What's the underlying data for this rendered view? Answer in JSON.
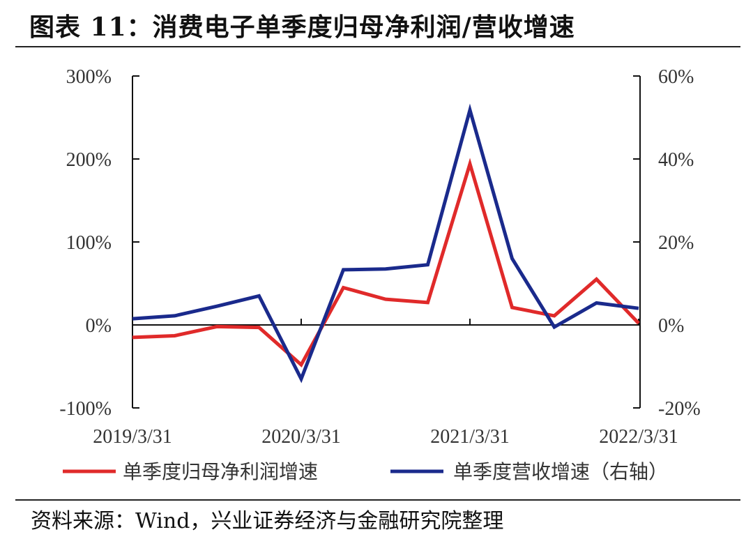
{
  "title": "图表 11：消费电子单季度归母净利润/营收增速",
  "source": "资料来源：Wind，兴业证券经济与金融研究院整理",
  "colors": {
    "profit": "#e02a2a",
    "revenue": "#1a2a8c",
    "axis": "#111111"
  },
  "chart_data": {
    "type": "line",
    "title": "消费电子单季度归母净利润/营收增速",
    "x": [
      "2019/3/31",
      "2019/6/30",
      "2019/9/30",
      "2019/12/31",
      "2020/3/31",
      "2020/6/30",
      "2020/9/30",
      "2020/12/31",
      "2021/3/31",
      "2021/6/30",
      "2021/9/30",
      "2021/12/31",
      "2022/3/31"
    ],
    "x_tick_labels": [
      "2019/3/31",
      "2020/3/31",
      "2021/3/31",
      "2022/3/31"
    ],
    "y_left": {
      "range": [
        -100,
        300
      ],
      "ticks": [
        -100,
        0,
        100,
        200,
        300
      ],
      "tick_labels": [
        "-100%",
        "0%",
        "100%",
        "200%",
        "300%"
      ]
    },
    "y_right": {
      "range": [
        -20,
        60
      ],
      "ticks": [
        -20,
        0,
        20,
        40,
        60
      ],
      "tick_labels": [
        "-20%",
        "0%",
        "20%",
        "40%",
        "60%"
      ]
    },
    "series": [
      {
        "name": "单季度归母净利润增速",
        "axis": "left",
        "values": [
          -15,
          -13,
          -2,
          -3,
          -48,
          45,
          31,
          27,
          194,
          21,
          11,
          55,
          2
        ]
      },
      {
        "name": "单季度营收增速（右轴）",
        "axis": "right",
        "values": [
          1.5,
          2.2,
          4.5,
          7,
          -13,
          13.3,
          13.5,
          14.5,
          51.8,
          16,
          -0.5,
          5.3,
          4
        ]
      }
    ],
    "legend": "bottom",
    "grid": false
  }
}
